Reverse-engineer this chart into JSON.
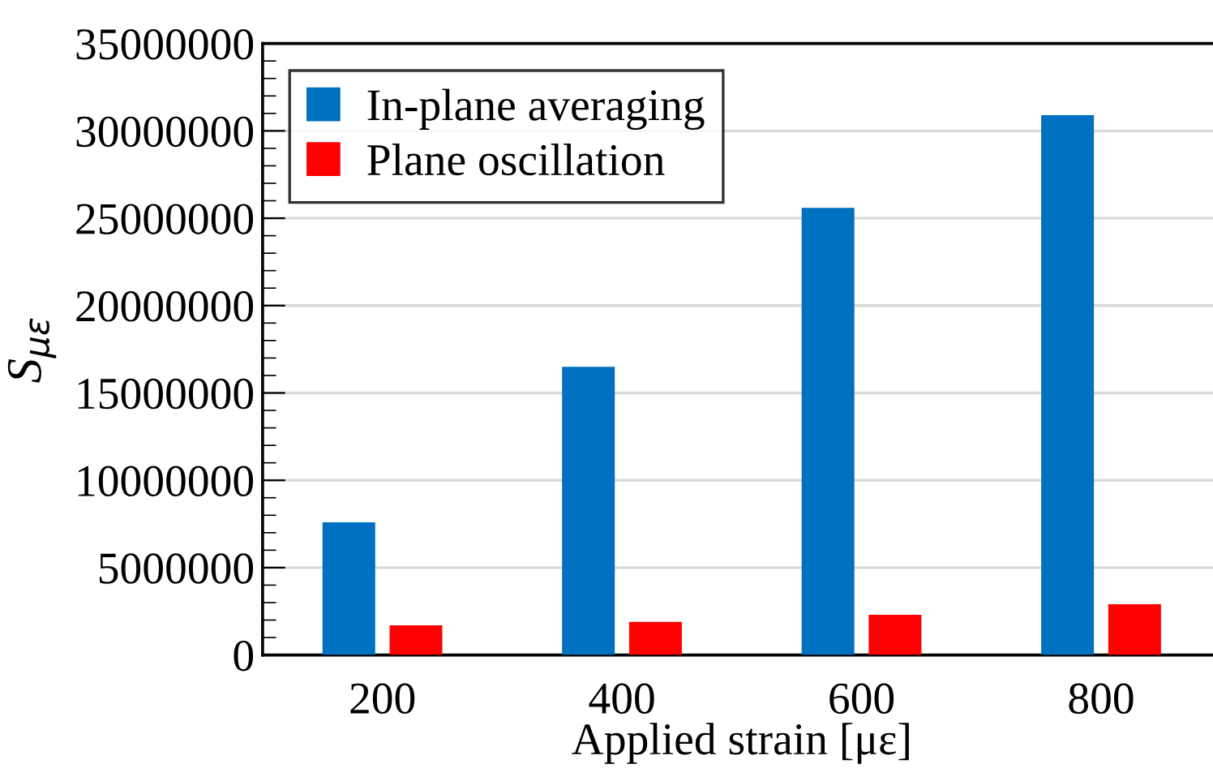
{
  "chart_data": {
    "type": "bar",
    "xlabel": "Applied strain [με]",
    "ylabel": "S$_{με}$",
    "categories": [
      "200",
      "400",
      "600",
      "800"
    ],
    "series": [
      {
        "name": "In-plane averaging",
        "color": "#0070c0",
        "values": [
          7600000,
          16500000,
          25600000,
          30900000
        ]
      },
      {
        "name": "Plane oscillation",
        "color": "#ff0000",
        "values": [
          1700000,
          1900000,
          2300000,
          2900000
        ]
      }
    ],
    "ylim": [
      0,
      35000000
    ],
    "yticks": [
      0,
      5000000,
      10000000,
      15000000,
      20000000,
      25000000,
      30000000,
      35000000
    ],
    "grid": "y",
    "legend": "top left"
  }
}
